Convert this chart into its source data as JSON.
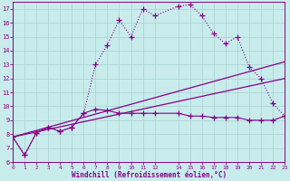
{
  "xlabel": "Windchill (Refroidissement éolien,°C)",
  "bg_color": "#c8ecec",
  "grid_color": "#a8d0d0",
  "line_color": "#880088",
  "xlim": [
    0,
    23
  ],
  "ylim": [
    6,
    17.5
  ],
  "yticks": [
    6,
    7,
    8,
    9,
    10,
    11,
    12,
    13,
    14,
    15,
    16,
    17
  ],
  "xticks": [
    0,
    1,
    2,
    3,
    4,
    5,
    6,
    7,
    8,
    9,
    10,
    11,
    12,
    14,
    15,
    16,
    17,
    18,
    19,
    20,
    21,
    22,
    23
  ],
  "xtick_labels": [
    "0",
    "1",
    "2",
    "3",
    "4",
    "5",
    "6",
    "7",
    "8",
    "9",
    "10",
    "11",
    "12",
    "14",
    "15",
    "16",
    "17",
    "18",
    "19",
    "20",
    "21",
    "22",
    "23"
  ],
  "series": [
    {
      "x": [
        0,
        1,
        2,
        3,
        4,
        5,
        6,
        7,
        8,
        9,
        10,
        11,
        12,
        14,
        15,
        16,
        17,
        18,
        19,
        20,
        21,
        22,
        23
      ],
      "y": [
        7.8,
        6.5,
        8.1,
        8.5,
        8.2,
        8.5,
        9.5,
        13.0,
        14.4,
        16.2,
        15.0,
        17.0,
        16.5,
        17.2,
        17.3,
        16.5,
        15.2,
        14.5,
        15.0,
        12.8,
        12.0,
        10.2,
        9.3
      ],
      "linestyle": ":",
      "marker": "+",
      "markersize": 4,
      "linewidth": 0.8
    },
    {
      "x": [
        0,
        1,
        2,
        3,
        4,
        5,
        6,
        7,
        8,
        9,
        10,
        11,
        12,
        14,
        15,
        16,
        17,
        18,
        19,
        20,
        21,
        22,
        23
      ],
      "y": [
        7.8,
        6.5,
        8.1,
        8.5,
        8.2,
        8.5,
        9.5,
        9.8,
        9.7,
        9.5,
        9.5,
        9.5,
        9.5,
        9.5,
        9.3,
        9.3,
        9.2,
        9.2,
        9.2,
        9.0,
        9.0,
        9.0,
        9.3
      ],
      "linestyle": "-",
      "marker": "+",
      "markersize": 4,
      "linewidth": 0.8
    },
    {
      "x": [
        0,
        23
      ],
      "y": [
        7.8,
        13.2
      ],
      "linestyle": "-",
      "marker": null,
      "markersize": 0,
      "linewidth": 0.9
    },
    {
      "x": [
        0,
        23
      ],
      "y": [
        7.8,
        12.0
      ],
      "linestyle": "-",
      "marker": null,
      "markersize": 0,
      "linewidth": 0.9
    }
  ]
}
